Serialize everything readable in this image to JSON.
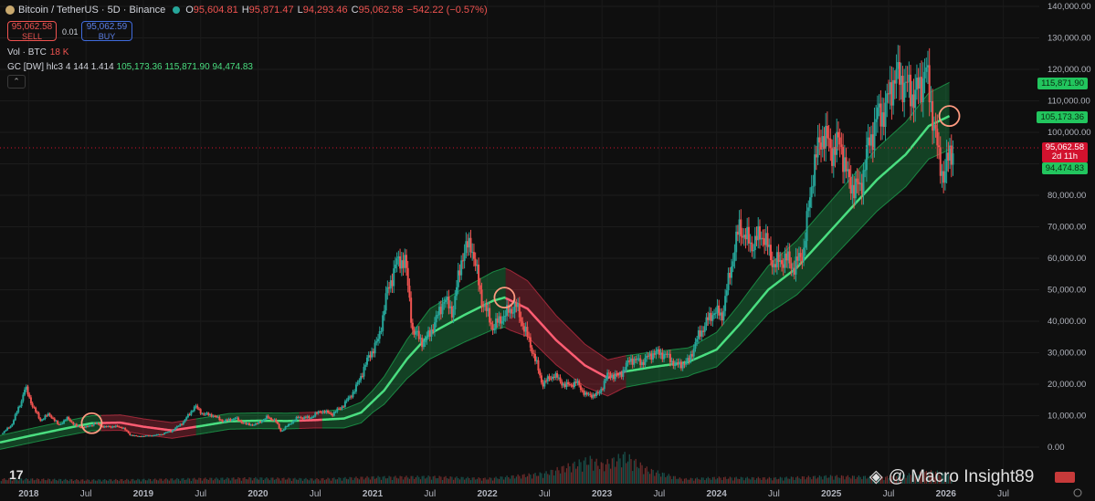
{
  "header": {
    "symbol": "Bitcoin / TetherUS · 5D · Binance",
    "open_label": "O",
    "open": "95,604.81",
    "high_label": "H",
    "high": "95,871.47",
    "low_label": "L",
    "low": "94,293.46",
    "close_label": "C",
    "close": "95,062.58",
    "change": "−542.22 (−0.57%)"
  },
  "trade": {
    "sell_price": "95,062.58",
    "sell_label": "SELL",
    "spread": "0.01",
    "buy_price": "95,062.59",
    "buy_label": "BUY"
  },
  "volume": {
    "label": "Vol · BTC",
    "value": "18 K"
  },
  "indicator": {
    "name": "GC [DW] hlc3 4 144 1.414",
    "mid": "105,173.36",
    "upper": "115,871.90",
    "lower": "94,474.83"
  },
  "price_tags": {
    "upper": "115,871.90",
    "mid": "105,173.36",
    "last": "95,062.58",
    "countdown": "2d 11h",
    "lower": "94,474.83"
  },
  "watermark": "@ Macro Insight89",
  "colors": {
    "bg": "#0f0f0f",
    "up": "#26a69a",
    "down": "#ef5350",
    "band_green": "#22c55e",
    "band_red": "#e8364f"
  },
  "chart_data": {
    "type": "candlestick",
    "title": "Bitcoin / TetherUS · 5D · Binance",
    "y_ticks": [
      0,
      10000,
      20000,
      30000,
      40000,
      50000,
      60000,
      70000,
      80000,
      90000,
      100000,
      110000,
      120000,
      130000,
      140000
    ],
    "y_tick_labels": [
      "0.00",
      "10,000.00",
      "20,000.00",
      "30,000.00",
      "40,000.00",
      "50,000.00",
      "60,000.00",
      "70,000.00",
      "80,000.00",
      "90,000.00",
      "100,000.00",
      "110,000.00",
      "120,000.00",
      "130,000.00",
      "140,000.00"
    ],
    "ylim": [
      0,
      140000
    ],
    "x_ticks": [
      2018.0,
      2018.5,
      2019.0,
      2019.5,
      2020.0,
      2020.5,
      2021.0,
      2021.5,
      2022.0,
      2022.5,
      2023.0,
      2023.5,
      2024.0,
      2024.5,
      2025.0,
      2025.5,
      2026.0,
      2026.5
    ],
    "x_tick_labels": [
      "2018",
      "Jul",
      "2019",
      "Jul",
      "2020",
      "Jul",
      "2021",
      "Jul",
      "2022",
      "Jul",
      "2023",
      "Jul",
      "2024",
      "Jul",
      "2025",
      "Jul",
      "2026",
      "Jul"
    ],
    "xlim": [
      2017.75,
      2027.3
    ],
    "price": [
      [
        2017.77,
        4400
      ],
      [
        2017.85,
        7000
      ],
      [
        2017.93,
        14000
      ],
      [
        2017.97,
        19000
      ],
      [
        2018.03,
        13500
      ],
      [
        2018.1,
        8500
      ],
      [
        2018.18,
        10500
      ],
      [
        2018.26,
        7000
      ],
      [
        2018.34,
        9200
      ],
      [
        2018.42,
        6500
      ],
      [
        2018.5,
        6300
      ],
      [
        2018.58,
        7600
      ],
      [
        2018.66,
        6400
      ],
      [
        2018.74,
        6600
      ],
      [
        2018.82,
        6300
      ],
      [
        2018.88,
        4000
      ],
      [
        2018.95,
        3400
      ],
      [
        2019.05,
        3600
      ],
      [
        2019.15,
        4000
      ],
      [
        2019.25,
        5200
      ],
      [
        2019.35,
        8000
      ],
      [
        2019.45,
        13000
      ],
      [
        2019.52,
        10500
      ],
      [
        2019.6,
        10200
      ],
      [
        2019.7,
        8200
      ],
      [
        2019.8,
        9200
      ],
      [
        2019.9,
        7200
      ],
      [
        2019.98,
        7200
      ],
      [
        2020.08,
        9500
      ],
      [
        2020.15,
        8500
      ],
      [
        2020.2,
        5000
      ],
      [
        2020.28,
        7500
      ],
      [
        2020.35,
        9500
      ],
      [
        2020.45,
        9300
      ],
      [
        2020.55,
        11500
      ],
      [
        2020.65,
        10500
      ],
      [
        2020.75,
        13500
      ],
      [
        2020.85,
        18500
      ],
      [
        2020.97,
        29000
      ],
      [
        2021.05,
        34000
      ],
      [
        2021.12,
        48000
      ],
      [
        2021.2,
        58000
      ],
      [
        2021.28,
        60000
      ],
      [
        2021.35,
        37000
      ],
      [
        2021.45,
        33000
      ],
      [
        2021.55,
        40000
      ],
      [
        2021.62,
        47000
      ],
      [
        2021.7,
        43000
      ],
      [
        2021.78,
        61000
      ],
      [
        2021.86,
        65000
      ],
      [
        2021.95,
        47000
      ],
      [
        2022.05,
        38000
      ],
      [
        2022.15,
        42000
      ],
      [
        2022.25,
        45000
      ],
      [
        2022.32,
        38000
      ],
      [
        2022.4,
        30000
      ],
      [
        2022.48,
        20000
      ],
      [
        2022.58,
        23000
      ],
      [
        2022.68,
        19500
      ],
      [
        2022.78,
        20500
      ],
      [
        2022.86,
        16500
      ],
      [
        2022.97,
        16700
      ],
      [
        2023.05,
        23000
      ],
      [
        2023.15,
        22500
      ],
      [
        2023.25,
        28000
      ],
      [
        2023.35,
        27000
      ],
      [
        2023.45,
        30000
      ],
      [
        2023.55,
        29500
      ],
      [
        2023.65,
        26000
      ],
      [
        2023.75,
        27000
      ],
      [
        2023.85,
        36000
      ],
      [
        2023.97,
        43000
      ],
      [
        2024.05,
        42000
      ],
      [
        2024.15,
        62000
      ],
      [
        2024.2,
        70000
      ],
      [
        2024.3,
        64000
      ],
      [
        2024.4,
        68000
      ],
      [
        2024.5,
        58000
      ],
      [
        2024.6,
        60000
      ],
      [
        2024.68,
        57000
      ],
      [
        2024.76,
        63000
      ],
      [
        2024.85,
        90000
      ],
      [
        2024.93,
        100000
      ],
      [
        2025.0,
        94000
      ],
      [
        2025.08,
        97000
      ],
      [
        2025.15,
        84000
      ],
      [
        2025.25,
        82000
      ],
      [
        2025.32,
        95000
      ],
      [
        2025.4,
        105000
      ],
      [
        2025.47,
        107000
      ],
      [
        2025.55,
        118000
      ],
      [
        2025.63,
        116000
      ],
      [
        2025.7,
        112000
      ],
      [
        2025.78,
        114000
      ],
      [
        2025.82,
        122000
      ],
      [
        2025.86,
        110000
      ],
      [
        2025.9,
        103000
      ],
      [
        2025.94,
        90000
      ],
      [
        2025.98,
        87000
      ],
      [
        2026.03,
        92000
      ],
      [
        2026.06,
        95062
      ]
    ],
    "volume_profile": [
      [
        2018.0,
        1
      ],
      [
        2018.5,
        0.8
      ],
      [
        2019.0,
        0.9
      ],
      [
        2019.5,
        1.1
      ],
      [
        2020.0,
        1.2
      ],
      [
        2020.5,
        1.0
      ],
      [
        2021.0,
        1.4
      ],
      [
        2021.5,
        1.5
      ],
      [
        2022.0,
        1.1
      ],
      [
        2022.5,
        2.2
      ],
      [
        2022.9,
        5.2
      ],
      [
        2023.0,
        4.0
      ],
      [
        2023.2,
        6.0
      ],
      [
        2023.4,
        3.0
      ],
      [
        2023.7,
        1.0
      ],
      [
        2024.0,
        1.3
      ],
      [
        2024.5,
        1.2
      ],
      [
        2025.0,
        1.6
      ],
      [
        2025.5,
        1.4
      ],
      [
        2025.9,
        2.6
      ],
      [
        2026.06,
        1.5
      ]
    ],
    "gaussian_channel": {
      "mid": [
        [
          2017.75,
          1500
        ],
        [
          2018.0,
          3500
        ],
        [
          2018.3,
          5800
        ],
        [
          2018.55,
          7600
        ],
        [
          2018.8,
          7800
        ],
        [
          2019.0,
          6500
        ],
        [
          2019.25,
          5300
        ],
        [
          2019.5,
          6700
        ],
        [
          2019.75,
          8200
        ],
        [
          2020.0,
          8400
        ],
        [
          2020.25,
          8300
        ],
        [
          2020.5,
          8600
        ],
        [
          2020.75,
          9100
        ],
        [
          2020.9,
          11000
        ],
        [
          2021.1,
          18000
        ],
        [
          2021.3,
          28000
        ],
        [
          2021.5,
          36000
        ],
        [
          2021.8,
          42000
        ],
        [
          2022.05,
          46500
        ],
        [
          2022.15,
          47500
        ],
        [
          2022.35,
          44000
        ],
        [
          2022.6,
          34000
        ],
        [
          2022.85,
          26000
        ],
        [
          2023.05,
          22000
        ],
        [
          2023.2,
          24000
        ],
        [
          2023.45,
          25500
        ],
        [
          2023.75,
          27000
        ],
        [
          2024.0,
          31000
        ],
        [
          2024.2,
          39000
        ],
        [
          2024.45,
          50000
        ],
        [
          2024.7,
          57000
        ],
        [
          2024.95,
          67000
        ],
        [
          2025.15,
          75000
        ],
        [
          2025.4,
          85000
        ],
        [
          2025.65,
          93000
        ],
        [
          2025.85,
          102000
        ],
        [
          2026.03,
          105173
        ]
      ],
      "width": [
        [
          2017.75,
          2200
        ],
        [
          2019.0,
          2500
        ],
        [
          2020.5,
          2500
        ],
        [
          2021.0,
          3500
        ],
        [
          2021.5,
          8000
        ],
        [
          2022.2,
          9500
        ],
        [
          2022.8,
          7000
        ],
        [
          2023.2,
          5000
        ],
        [
          2023.8,
          4500
        ],
        [
          2024.3,
          7000
        ],
        [
          2024.8,
          9000
        ],
        [
          2025.4,
          10000
        ],
        [
          2026.03,
          10700
        ]
      ],
      "red_ranges": [
        [
          2018.62,
          2019.45
        ],
        [
          2020.35,
          2020.55
        ],
        [
          2022.15,
          2023.2
        ]
      ],
      "cross_markers": [
        [
          2018.55,
          7600
        ],
        [
          2022.15,
          47500
        ],
        [
          2026.03,
          105173
        ]
      ]
    }
  }
}
